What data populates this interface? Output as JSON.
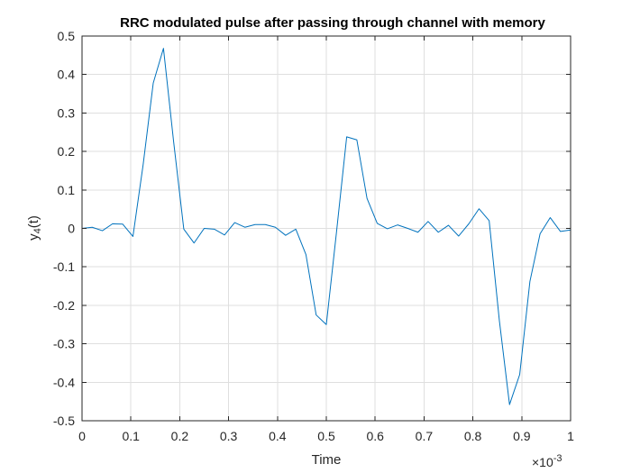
{
  "chart_data": {
    "type": "line",
    "title": "RRC modulated pulse after passing through channel with memory",
    "xlabel": "Time",
    "ylabel": "y",
    "ylabel_subscript": "4",
    "ylabel_suffix": "(t)",
    "x_exponent_base": "×10",
    "x_exponent_power": "-3",
    "xlim": [
      0,
      1
    ],
    "ylim": [
      -0.5,
      0.5
    ],
    "x_ticks": [
      0,
      0.1,
      0.2,
      0.3,
      0.4,
      0.5,
      0.6,
      0.7,
      0.8,
      0.9,
      1
    ],
    "x_tick_labels": [
      "0",
      "0.1",
      "0.2",
      "0.3",
      "0.4",
      "0.5",
      "0.6",
      "0.7",
      "0.8",
      "0.9",
      "1"
    ],
    "y_ticks": [
      0.5,
      0.4,
      0.3,
      0.2,
      0.1,
      0,
      -0.1,
      -0.2,
      -0.3,
      -0.4,
      -0.5
    ],
    "y_tick_labels": [
      "0.5",
      "0.4",
      "0.3",
      "0.2",
      "0.1",
      "0",
      "-0.1",
      "-0.2",
      "-0.3",
      "-0.4",
      "-0.5"
    ],
    "grid": true,
    "series": [
      {
        "color": "#0072bd",
        "x": [
          0,
          0.0208,
          0.0417,
          0.0625,
          0.0833,
          0.1042,
          0.125,
          0.1458,
          0.1667,
          0.1875,
          0.2083,
          0.2292,
          0.25,
          0.2708,
          0.2917,
          0.3125,
          0.3333,
          0.3542,
          0.375,
          0.3958,
          0.4167,
          0.4375,
          0.4583,
          0.4792,
          0.5,
          0.5208,
          0.5417,
          0.5625,
          0.5833,
          0.6042,
          0.625,
          0.6458,
          0.6667,
          0.6875,
          0.7083,
          0.7292,
          0.75,
          0.7708,
          0.7917,
          0.8125,
          0.8333,
          0.8542,
          0.875,
          0.8958,
          0.9167,
          0.9375,
          0.9583,
          0.9792,
          1.0
        ],
        "y": [
          0.0,
          0.003,
          -0.006,
          0.012,
          0.011,
          -0.021,
          0.165,
          0.378,
          0.468,
          0.225,
          -0.002,
          -0.038,
          0.0,
          -0.002,
          -0.017,
          0.015,
          0.003,
          0.01,
          0.01,
          0.003,
          -0.018,
          -0.002,
          -0.068,
          -0.225,
          -0.25,
          -0.01,
          0.238,
          0.23,
          0.078,
          0.013,
          -0.001,
          0.009,
          0.0,
          -0.01,
          0.018,
          -0.01,
          0.008,
          -0.02,
          0.012,
          0.051,
          0.02,
          -0.24,
          -0.458,
          -0.38,
          -0.138,
          -0.014,
          0.028,
          -0.008,
          -0.004
        ]
      }
    ]
  }
}
